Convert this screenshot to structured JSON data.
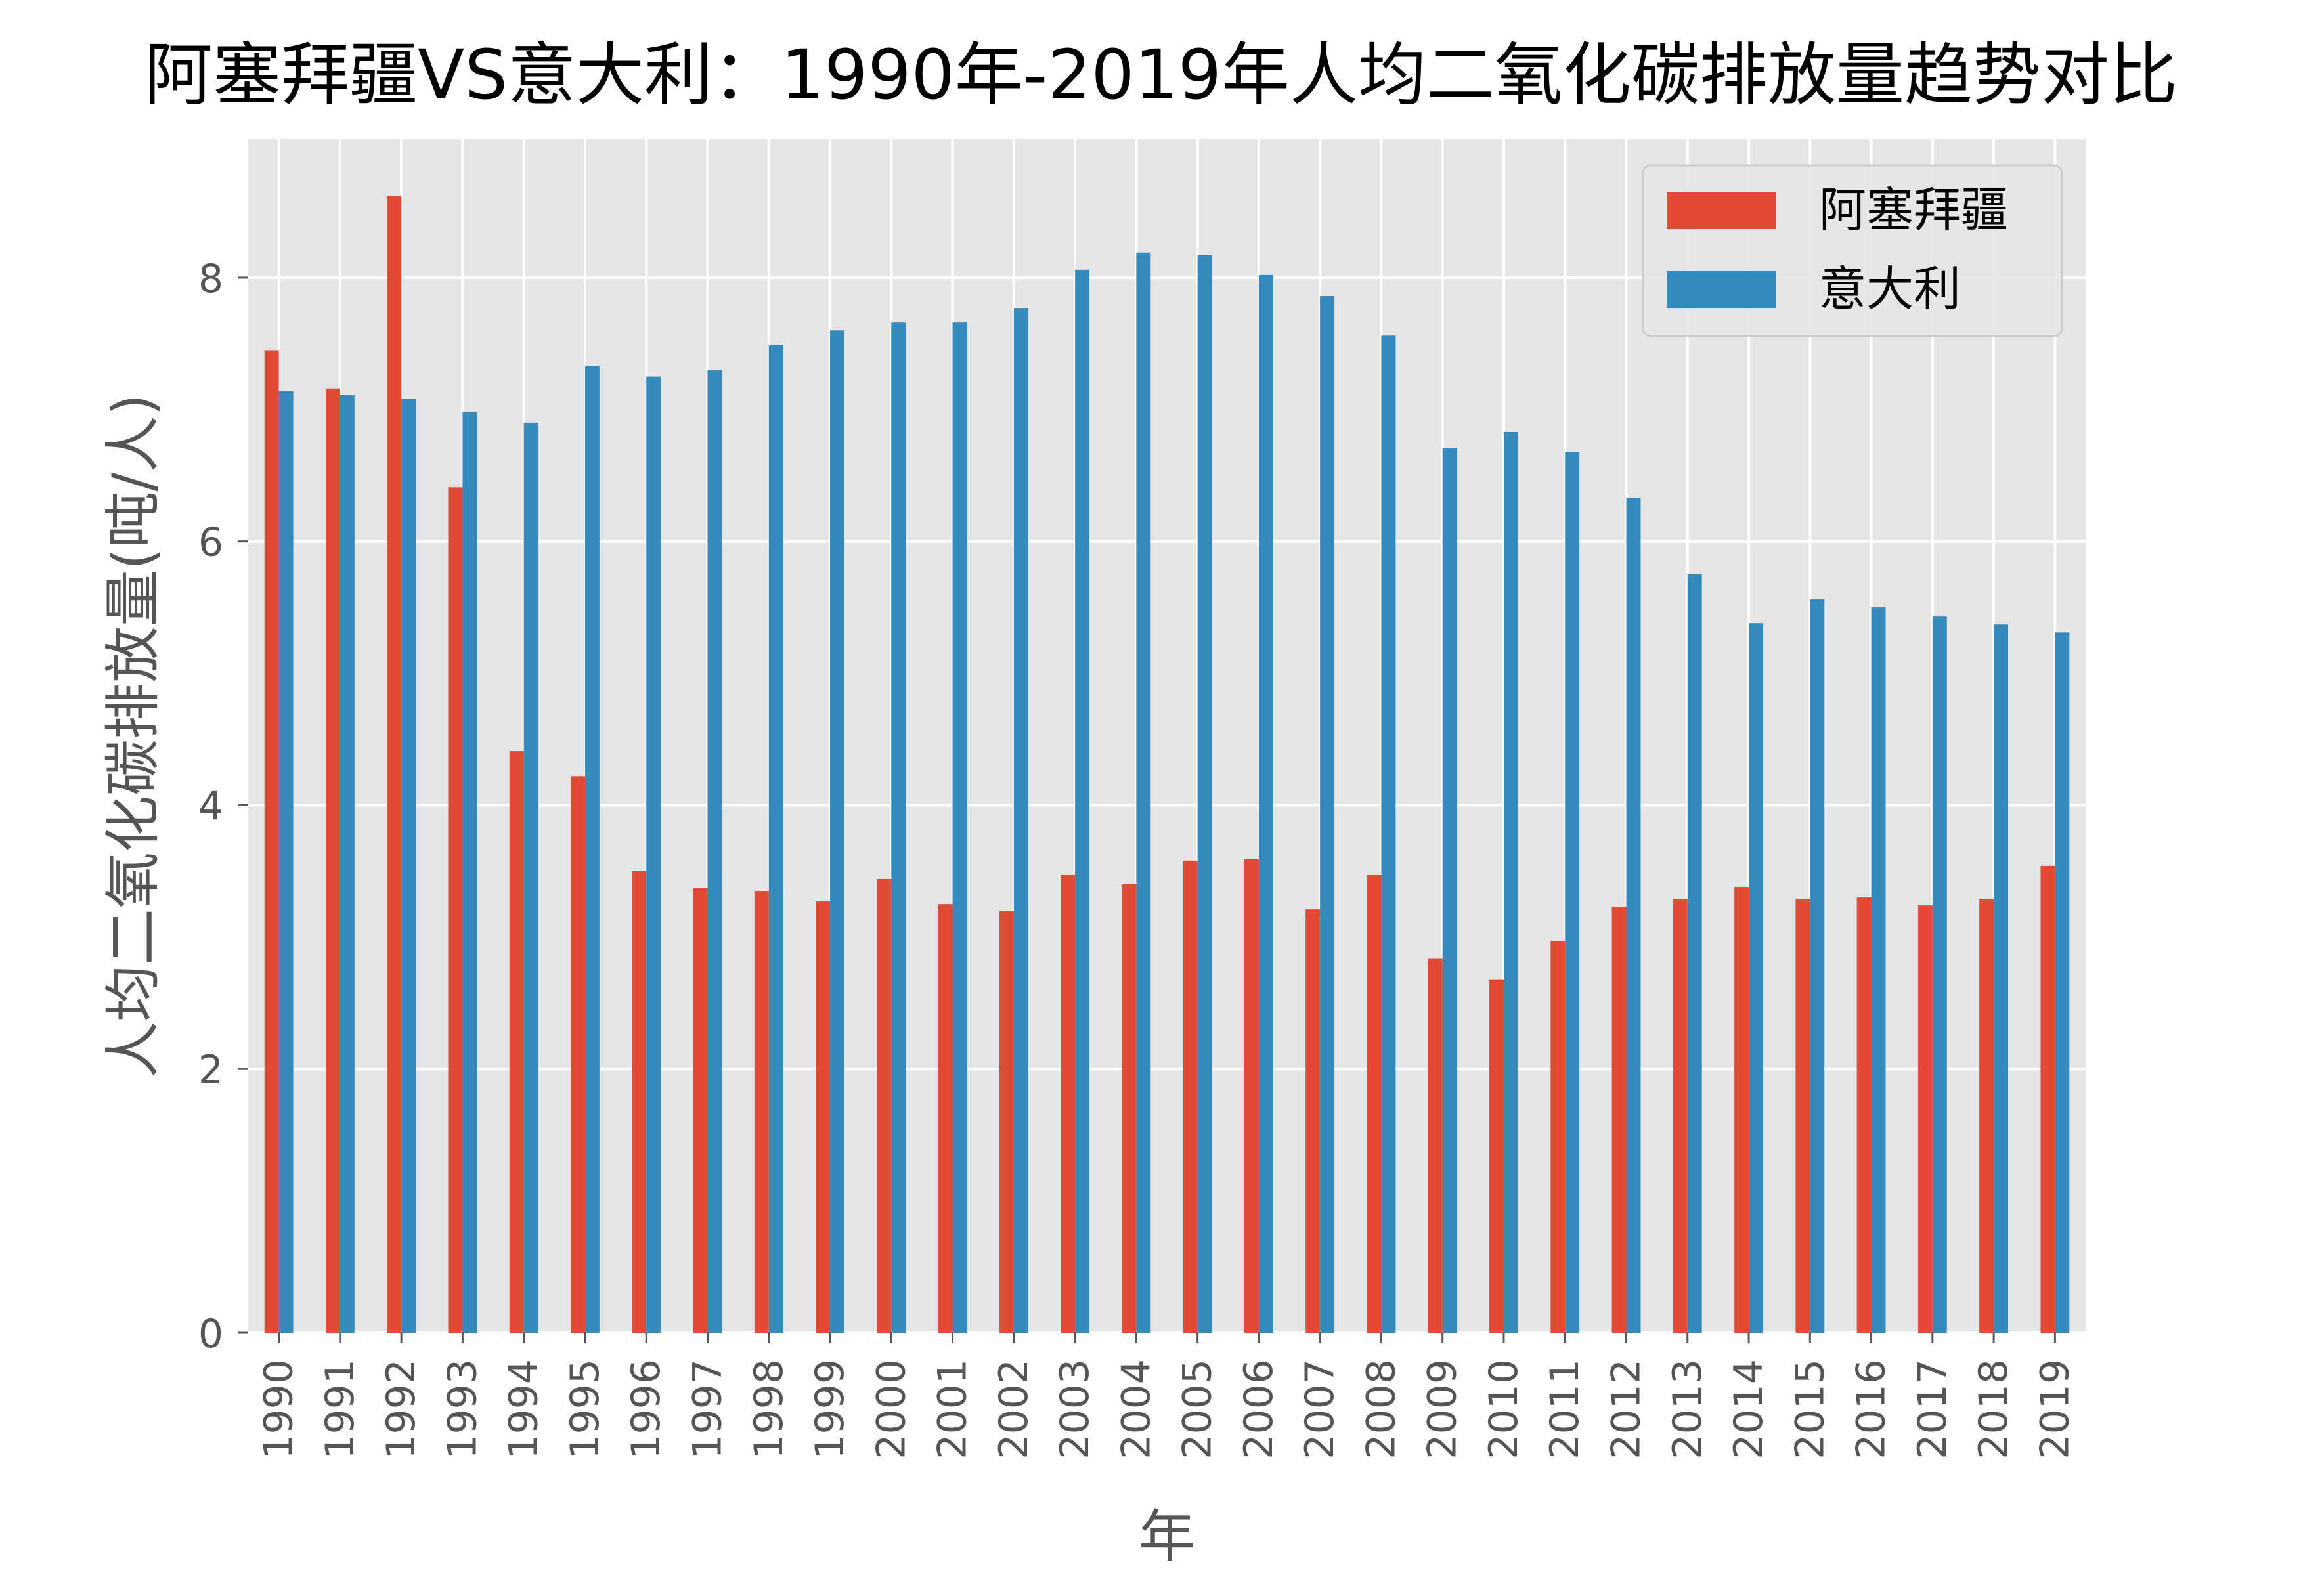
{
  "chart_data": {
    "type": "bar",
    "title": "阿塞拜疆VS意大利：1990年-2019年人均二氧化碳排放量趋势对比",
    "xlabel": "年",
    "ylabel": "人均二氧化碳排放量(吨/人)",
    "categories": [
      "1990",
      "1991",
      "1992",
      "1993",
      "1994",
      "1995",
      "1996",
      "1997",
      "1998",
      "1999",
      "2000",
      "2001",
      "2002",
      "2003",
      "2004",
      "2005",
      "2006",
      "2007",
      "2008",
      "2009",
      "2010",
      "2011",
      "2012",
      "2013",
      "2014",
      "2015",
      "2016",
      "2017",
      "2018",
      "2019"
    ],
    "series": [
      {
        "name": "阿塞拜疆",
        "color": "#E24A33",
        "values": [
          7.45,
          7.16,
          8.62,
          6.41,
          4.41,
          4.22,
          3.5,
          3.37,
          3.35,
          3.27,
          3.44,
          3.25,
          3.2,
          3.47,
          3.4,
          3.58,
          3.59,
          3.21,
          3.47,
          2.84,
          2.68,
          2.97,
          3.23,
          3.29,
          3.38,
          3.29,
          3.3,
          3.24,
          3.29,
          3.54
        ]
      },
      {
        "name": "意大利",
        "color": "#348ABD",
        "values": [
          7.14,
          7.11,
          7.08,
          6.98,
          6.9,
          7.33,
          7.25,
          7.3,
          7.49,
          7.6,
          7.66,
          7.66,
          7.77,
          8.06,
          8.19,
          8.17,
          8.02,
          7.86,
          7.56,
          6.71,
          6.83,
          6.68,
          6.33,
          5.75,
          5.38,
          5.56,
          5.5,
          5.43,
          5.37,
          5.31
        ]
      }
    ],
    "yticks": [
      "0",
      "2",
      "4",
      "6",
      "8"
    ],
    "ylim": [
      0,
      9.05
    ],
    "grid": true,
    "legend": "top-right",
    "background": "#E5E5E5"
  }
}
